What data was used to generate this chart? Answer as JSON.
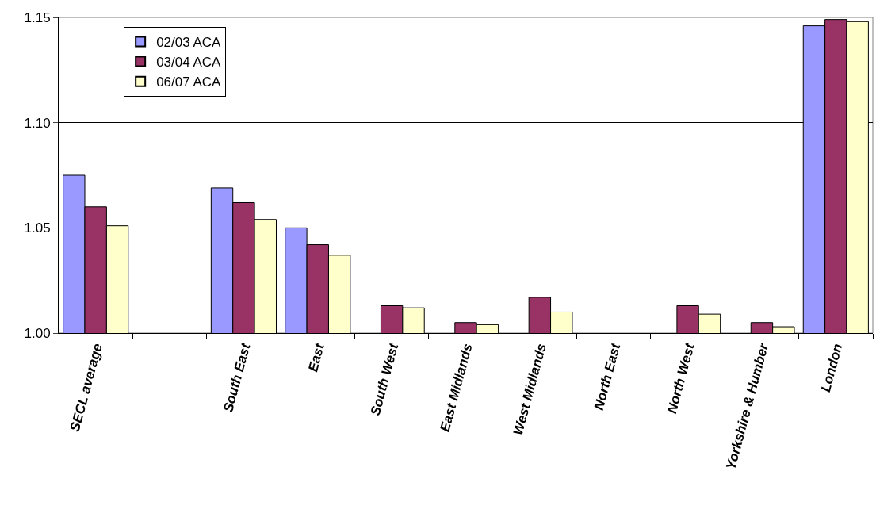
{
  "chart_data": {
    "type": "bar",
    "categories": [
      "SECL average",
      null,
      "South East",
      "East",
      "South West",
      "East Midlands",
      "West Midlands",
      "North East",
      "North West",
      "Yorkshire & Humber",
      "London"
    ],
    "series": [
      {
        "name": "02/03 ACA",
        "color": "#9999ff",
        "values": [
          1.075,
          null,
          1.069,
          1.05,
          null,
          null,
          null,
          null,
          null,
          null,
          1.146
        ]
      },
      {
        "name": "03/04 ACA",
        "color": "#993366",
        "values": [
          1.06,
          null,
          1.062,
          1.042,
          1.013,
          1.005,
          1.017,
          null,
          1.013,
          1.005,
          1.149
        ]
      },
      {
        "name": "06/07 ACA",
        "color": "#ffffcc",
        "values": [
          1.051,
          null,
          1.054,
          1.037,
          1.012,
          1.004,
          1.01,
          null,
          1.009,
          1.003,
          1.148
        ]
      }
    ],
    "ylim": [
      1.0,
      1.15
    ],
    "yticks": [
      {
        "value": 1.0,
        "label": "1.00"
      },
      {
        "value": 1.05,
        "label": "1.05"
      },
      {
        "value": 1.1,
        "label": "1.10"
      },
      {
        "value": 1.15,
        "label": "1.15"
      }
    ],
    "grid": "y",
    "legend": "top left"
  }
}
